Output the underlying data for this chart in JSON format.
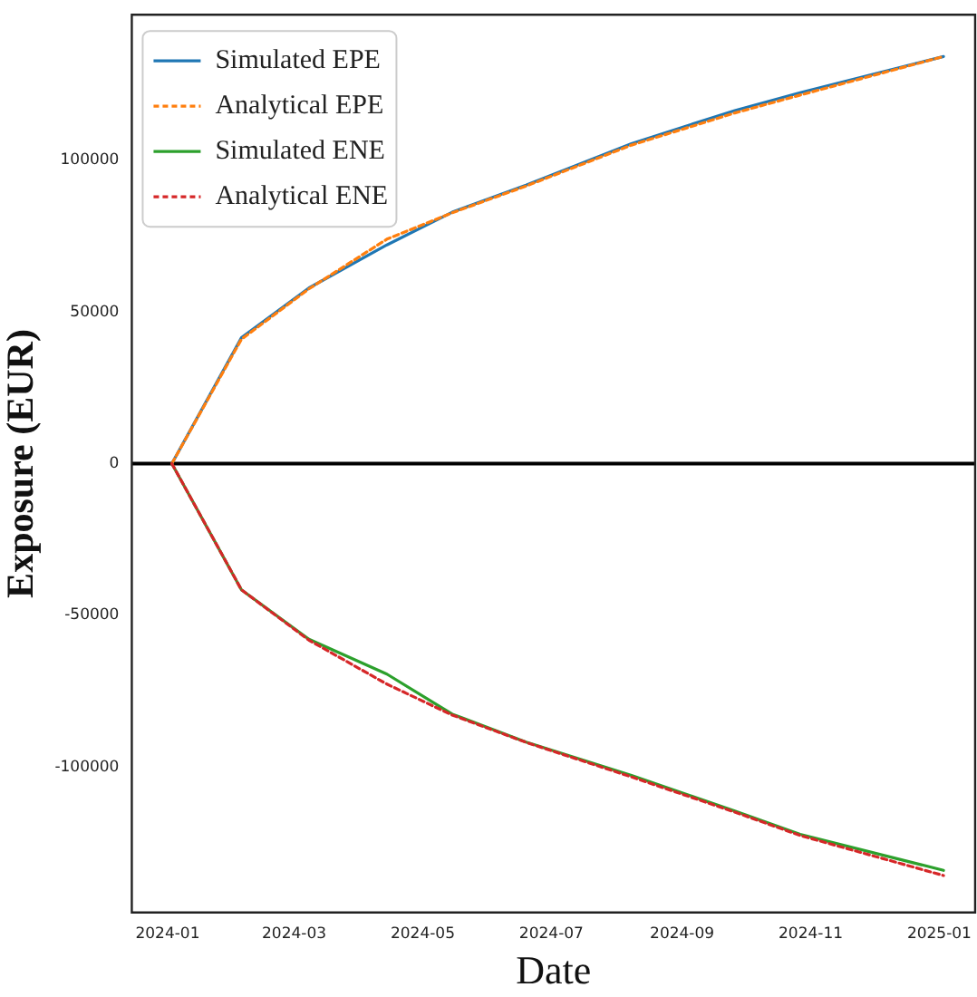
{
  "chart_data": {
    "type": "line",
    "xlabel": "Date",
    "ylabel": "Exposure (EUR)",
    "x": [
      "2024-01-03",
      "2024-02-05",
      "2024-03-08",
      "2024-04-14",
      "2024-05-15",
      "2024-06-19",
      "2024-08-08",
      "2024-09-26",
      "2024-10-27",
      "2025-01-03"
    ],
    "series": [
      {
        "name": "Simulated EPE",
        "color": "#1f77b4",
        "line_style": "solid",
        "values": [
          0,
          41500,
          57900,
          72100,
          82900,
          91800,
          105500,
          116400,
          122300,
          134200
        ]
      },
      {
        "name": "Analytical EPE",
        "color": "#ff7f0e",
        "line_style": "dashed",
        "values": [
          0,
          41000,
          57600,
          74000,
          82700,
          91500,
          105000,
          115600,
          121500,
          134200
        ]
      },
      {
        "name": "Simulated ENE",
        "color": "#2ca02c",
        "line_style": "solid",
        "values": [
          0,
          -41600,
          -57900,
          -69400,
          -82600,
          -91800,
          -102800,
          -114500,
          -122200,
          -134100
        ]
      },
      {
        "name": "Analytical ENE",
        "color": "#d62728",
        "line_style": "dashed",
        "values": [
          0,
          -41600,
          -58200,
          -72700,
          -82900,
          -91900,
          -103300,
          -114900,
          -122600,
          -135800
        ]
      }
    ],
    "xlim": [
      "2023-12-15",
      "2025-01-18"
    ],
    "xticks": [
      "2024-01",
      "2024-03",
      "2024-05",
      "2024-07",
      "2024-09",
      "2024-11",
      "2025-01"
    ],
    "ylim": [
      -148000,
      148000
    ],
    "yticks": [
      -100000,
      -50000,
      0,
      50000,
      100000
    ],
    "ref_lines": [
      {
        "axis": "y",
        "value": 0,
        "color": "#000000"
      }
    ],
    "legend": "top left",
    "grid": false,
    "marker": "none"
  }
}
